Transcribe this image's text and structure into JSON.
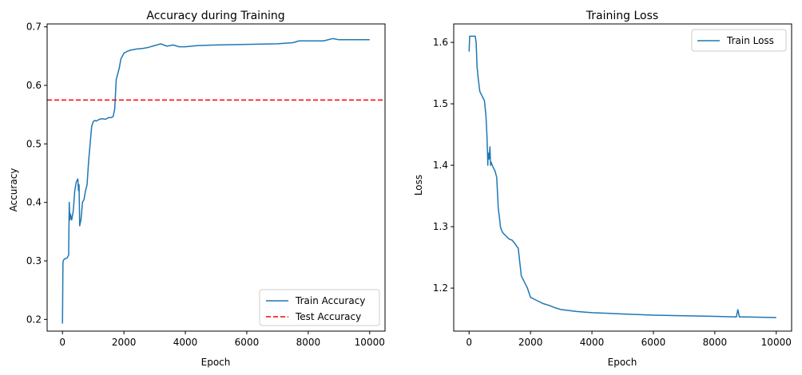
{
  "chart_data": [
    {
      "type": "line",
      "title": "Accuracy during Training",
      "xlabel": "Epoch",
      "ylabel": "Accuracy",
      "xlim": [
        -500,
        10500
      ],
      "ylim": [
        0.18,
        0.705
      ],
      "xticks": [
        0,
        2000,
        4000,
        6000,
        8000,
        10000
      ],
      "yticks": [
        0.2,
        0.3,
        0.4,
        0.5,
        0.6,
        0.7
      ],
      "legend_position": "lower-right",
      "series": [
        {
          "name": "Train Accuracy",
          "color": "#1f77b4",
          "x": [
            0,
            15,
            30,
            60,
            100,
            150,
            200,
            220,
            240,
            260,
            280,
            300,
            350,
            400,
            450,
            500,
            520,
            540,
            560,
            580,
            600,
            620,
            650,
            700,
            750,
            800,
            850,
            900,
            950,
            1000,
            1050,
            1100,
            1200,
            1300,
            1400,
            1500,
            1600,
            1650,
            1700,
            1720,
            1750,
            1800,
            1850,
            1900,
            2000,
            2100,
            2200,
            2400,
            2600,
            2800,
            3000,
            3200,
            3400,
            3600,
            3800,
            4000,
            4200,
            4400,
            5000,
            6000,
            7000,
            7500,
            7700,
            8000,
            8500,
            8800,
            9000,
            9500,
            10000
          ],
          "y": [
            0.193,
            0.296,
            0.301,
            0.303,
            0.304,
            0.305,
            0.31,
            0.4,
            0.37,
            0.38,
            0.375,
            0.37,
            0.385,
            0.42,
            0.435,
            0.44,
            0.42,
            0.43,
            0.36,
            0.365,
            0.37,
            0.38,
            0.4,
            0.405,
            0.42,
            0.43,
            0.47,
            0.5,
            0.53,
            0.538,
            0.54,
            0.539,
            0.542,
            0.543,
            0.542,
            0.545,
            0.545,
            0.547,
            0.56,
            0.58,
            0.61,
            0.62,
            0.63,
            0.645,
            0.655,
            0.658,
            0.66,
            0.662,
            0.663,
            0.665,
            0.668,
            0.671,
            0.667,
            0.669,
            0.666,
            0.666,
            0.667,
            0.668,
            0.669,
            0.67,
            0.671,
            0.673,
            0.676,
            0.676,
            0.676,
            0.68,
            0.678,
            0.678,
            0.678
          ]
        },
        {
          "name": "Test Accuracy",
          "color": "#ff0000",
          "style": "dashed",
          "hline": 0.575
        }
      ]
    },
    {
      "type": "line",
      "title": "Training Loss",
      "xlabel": "Epoch",
      "ylabel": "Loss",
      "xlim": [
        -500,
        10500
      ],
      "ylim": [
        1.13,
        1.63
      ],
      "xticks": [
        0,
        2000,
        4000,
        6000,
        8000,
        10000
      ],
      "yticks": [
        1.2,
        1.3,
        1.4,
        1.5,
        1.6
      ],
      "legend_position": "upper-right",
      "series": [
        {
          "name": "Train Loss",
          "color": "#1f77b4",
          "x": [
            0,
            20,
            40,
            100,
            150,
            200,
            230,
            260,
            300,
            350,
            400,
            500,
            550,
            580,
            600,
            610,
            620,
            650,
            680,
            700,
            720,
            750,
            800,
            850,
            900,
            950,
            1000,
            1020,
            1050,
            1100,
            1200,
            1300,
            1400,
            1500,
            1550,
            1600,
            1700,
            1750,
            1800,
            1900,
            2000,
            2200,
            2400,
            2600,
            2800,
            3000,
            3500,
            4000,
            5000,
            6000,
            7000,
            8000,
            8700,
            8750,
            8800,
            9000,
            10000
          ],
          "y": [
            1.585,
            1.61,
            1.61,
            1.61,
            1.61,
            1.61,
            1.6,
            1.56,
            1.54,
            1.52,
            1.515,
            1.505,
            1.48,
            1.45,
            1.42,
            1.4,
            1.42,
            1.41,
            1.43,
            1.4,
            1.405,
            1.4,
            1.395,
            1.39,
            1.38,
            1.33,
            1.31,
            1.3,
            1.295,
            1.29,
            1.285,
            1.28,
            1.278,
            1.272,
            1.268,
            1.265,
            1.22,
            1.215,
            1.21,
            1.2,
            1.185,
            1.18,
            1.175,
            1.172,
            1.168,
            1.165,
            1.162,
            1.16,
            1.158,
            1.156,
            1.155,
            1.154,
            1.153,
            1.165,
            1.153,
            1.153,
            1.152
          ]
        }
      ]
    }
  ]
}
